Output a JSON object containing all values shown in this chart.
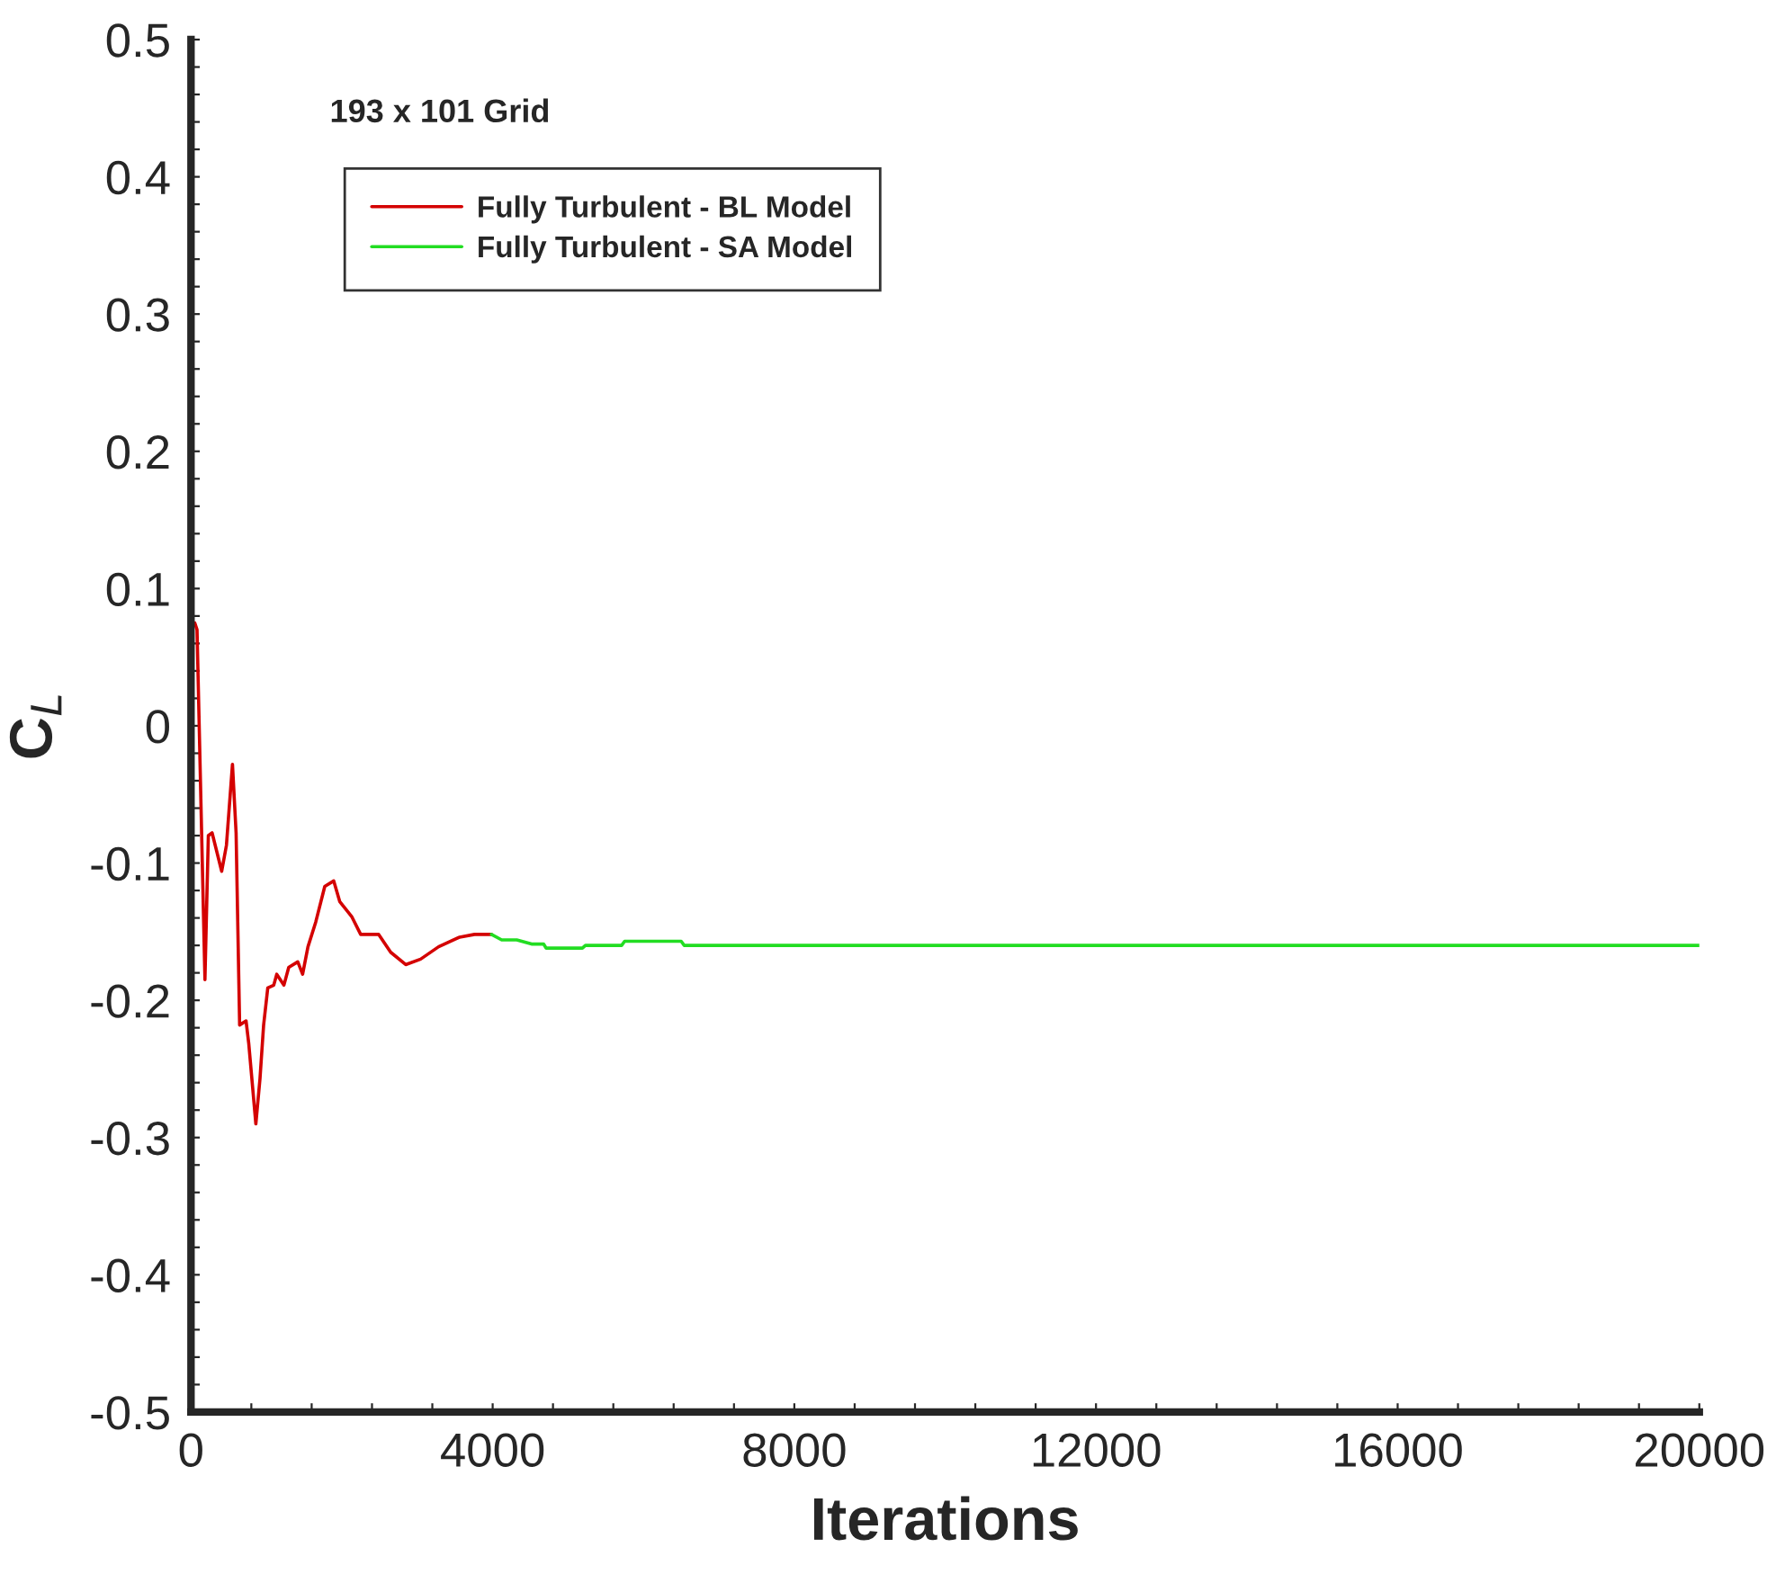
{
  "chart_data": {
    "type": "line",
    "xlabel": "Iterations",
    "ylabel": "C$_{L}$",
    "annotations": [
      "193 x 101 Grid"
    ],
    "xlim": [
      0,
      20000
    ],
    "ylim": [
      -0.5,
      0.5
    ],
    "xticks": [
      0,
      {
        "value": 800,
        "label": null
      },
      {
        "value": 1600,
        "label": null
      },
      {
        "value": 2400,
        "label": null
      },
      {
        "value": 3200,
        "label": null
      },
      4000,
      {
        "value": 4800,
        "label": null
      },
      {
        "value": 5600,
        "label": null
      },
      {
        "value": 6400,
        "label": null
      },
      {
        "value": 7200,
        "label": null
      },
      8000,
      {
        "value": 8800,
        "label": null
      },
      {
        "value": 9600,
        "label": null
      },
      {
        "value": 10400,
        "label": null
      },
      {
        "value": 11200,
        "label": null
      },
      12000,
      {
        "value": 12800,
        "label": null
      },
      {
        "value": 13600,
        "label": null
      },
      {
        "value": 14400,
        "label": null
      },
      {
        "value": 15200,
        "label": null
      },
      16000,
      {
        "value": 16800,
        "label": null
      },
      {
        "value": 17600,
        "label": null
      },
      {
        "value": 18400,
        "label": null
      },
      {
        "value": 19200,
        "label": null
      },
      20000
    ],
    "yticks": [
      -0.5,
      {
        "value": -0.48,
        "label": null
      },
      {
        "value": -0.46,
        "label": null
      },
      {
        "value": -0.44,
        "label": null
      },
      {
        "value": -0.42,
        "label": null
      },
      -0.4,
      {
        "value": -0.38,
        "label": null
      },
      {
        "value": -0.36,
        "label": null
      },
      {
        "value": -0.34,
        "label": null
      },
      {
        "value": -0.32,
        "label": null
      },
      -0.3,
      {
        "value": -0.28,
        "label": null
      },
      {
        "value": -0.26,
        "label": null
      },
      {
        "value": -0.24,
        "label": null
      },
      {
        "value": -0.22,
        "label": null
      },
      -0.2,
      {
        "value": -0.18,
        "label": null
      },
      {
        "value": -0.16,
        "label": null
      },
      {
        "value": -0.14,
        "label": null
      },
      {
        "value": -0.12,
        "label": null
      },
      -0.1,
      {
        "value": -0.08,
        "label": null
      },
      {
        "value": -0.06,
        "label": null
      },
      {
        "value": -0.04,
        "label": null
      },
      {
        "value": -0.02,
        "label": null
      },
      0,
      {
        "value": 0.02,
        "label": null
      },
      {
        "value": 0.04,
        "label": null
      },
      {
        "value": 0.06,
        "label": null
      },
      {
        "value": 0.08,
        "label": null
      },
      0.1,
      {
        "value": 0.12,
        "label": null
      },
      {
        "value": 0.14,
        "label": null
      },
      {
        "value": 0.16,
        "label": null
      },
      {
        "value": 0.18,
        "label": null
      },
      0.2,
      {
        "value": 0.22,
        "label": null
      },
      {
        "value": 0.24,
        "label": null
      },
      {
        "value": 0.26,
        "label": null
      },
      {
        "value": 0.28,
        "label": null
      },
      0.3,
      {
        "value": 0.32,
        "label": null
      },
      {
        "value": 0.34,
        "label": null
      },
      {
        "value": 0.36,
        "label": null
      },
      {
        "value": 0.38,
        "label": null
      },
      0.4,
      {
        "value": 0.42,
        "label": null
      },
      {
        "value": 0.44,
        "label": null
      },
      {
        "value": 0.46,
        "label": null
      },
      {
        "value": 0.48,
        "label": null
      },
      0.5
    ],
    "grid": false,
    "legend": "top left",
    "marker": "none",
    "line_style": "solid",
    "series": [
      {
        "name": "Fully Turbulent - BL Model",
        "color": "#d40000",
        "x": [
          50,
          80,
          185,
          230,
          280,
          407,
          470,
          550,
          598,
          645,
          730,
          765,
          860,
          915,
          963,
          1018,
          1097,
          1137,
          1232,
          1296,
          1416,
          1480,
          1551,
          1654,
          1774,
          1893,
          1972,
          2131,
          2250,
          2489,
          2648,
          2847,
          3045,
          3283,
          3562,
          3760,
          3984
        ],
        "values": [
          0.075,
          0.07,
          -0.185,
          -0.08,
          -0.078,
          -0.106,
          -0.087,
          -0.028,
          -0.078,
          -0.218,
          -0.215,
          -0.231,
          -0.29,
          -0.257,
          -0.218,
          -0.191,
          -0.189,
          -0.181,
          -0.189,
          -0.176,
          -0.172,
          -0.181,
          -0.161,
          -0.143,
          -0.117,
          -0.113,
          -0.128,
          -0.139,
          -0.152,
          -0.152,
          -0.165,
          -0.174,
          -0.17,
          -0.161,
          -0.154,
          -0.152,
          -0.152
        ]
      },
      {
        "name": "Fully Turbulent - SA Model",
        "color": "#22dd22",
        "x": [
          3984,
          4120,
          4320,
          4515,
          4675,
          4710,
          5190,
          5230,
          5710,
          5750,
          6500,
          6540,
          20000
        ],
        "values": [
          -0.152,
          -0.156,
          -0.156,
          -0.159,
          -0.159,
          -0.162,
          -0.162,
          -0.16,
          -0.16,
          -0.157,
          -0.157,
          -0.16,
          -0.16
        ]
      }
    ]
  }
}
